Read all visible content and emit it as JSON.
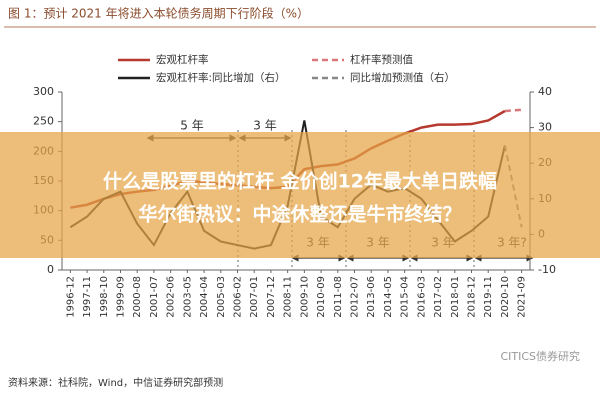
{
  "chart_data": {
    "type": "line",
    "title": "图 1：预计 2021 年将进入本轮债务周期下行阶段（%）",
    "categories": [
      "1996-12",
      "1997-11",
      "1998-10",
      "1999-09",
      "2000-08",
      "2001-07",
      "2002-06",
      "2003-05",
      "2004-04",
      "2005-03",
      "2006-02",
      "2007-01",
      "2007-12",
      "2008-11",
      "2009-10",
      "2010-09",
      "2011-08",
      "2012-07",
      "2013-06",
      "2014-05",
      "2015-04",
      "2016-03",
      "2017-02",
      "2018-01",
      "2018-12",
      "2019-11",
      "2020-10",
      "2021-09"
    ],
    "series": [
      {
        "name": "宏观杠杆率",
        "color": "#b5392f",
        "dashed": false,
        "axis": "y",
        "values": [
          105,
          110,
          120,
          128,
          132,
          135,
          142,
          150,
          148,
          145,
          143,
          140,
          138,
          140,
          170,
          175,
          178,
          188,
          205,
          218,
          230,
          240,
          245,
          245,
          246,
          252,
          268,
          null
        ]
      },
      {
        "name": "杠杆率预测值",
        "color": "#d9777a",
        "dashed": true,
        "axis": "y",
        "values": [
          null,
          null,
          null,
          null,
          null,
          null,
          null,
          null,
          null,
          null,
          null,
          null,
          null,
          null,
          null,
          null,
          null,
          null,
          null,
          null,
          null,
          null,
          null,
          null,
          null,
          null,
          268,
          270
        ]
      },
      {
        "name": "宏观杠杆率:同比增加（右）",
        "color": "#222222",
        "dashed": false,
        "axis": "y2",
        "values": [
          2,
          5,
          10,
          12,
          3,
          -3,
          6,
          12,
          1,
          -2,
          -3,
          -4,
          -3,
          8,
          32,
          5,
          2,
          10,
          14,
          12,
          13,
          10,
          4,
          -2,
          1,
          5,
          25,
          null
        ]
      },
      {
        "name": "同比增加预测值（右）",
        "color": "#888888",
        "dashed": true,
        "axis": "y2",
        "values": [
          null,
          null,
          null,
          null,
          null,
          null,
          null,
          null,
          null,
          null,
          null,
          null,
          null,
          null,
          null,
          null,
          null,
          null,
          null,
          null,
          null,
          null,
          null,
          null,
          null,
          null,
          25,
          2
        ]
      }
    ],
    "ylim": [
      0,
      300
    ],
    "yticks": [
      0,
      50,
      100,
      150,
      200,
      250,
      300
    ],
    "y2lim": [
      -10,
      40
    ],
    "y2ticks": [
      -10,
      0,
      10,
      20,
      30,
      40
    ],
    "grid": false,
    "annotations": [
      "5 年",
      "3 年",
      "3 年",
      "3 年",
      "3 年",
      "3 年?"
    ],
    "source": "资料来源：社科院，Wind，中信证券研究部预测",
    "watermark": "CITICS债券研究"
  },
  "banner": {
    "line1": "什么是股票里的杠杆 金价创12年最大单日跌幅",
    "line2": "华尔街热议：中途休整还是牛市终结？"
  }
}
